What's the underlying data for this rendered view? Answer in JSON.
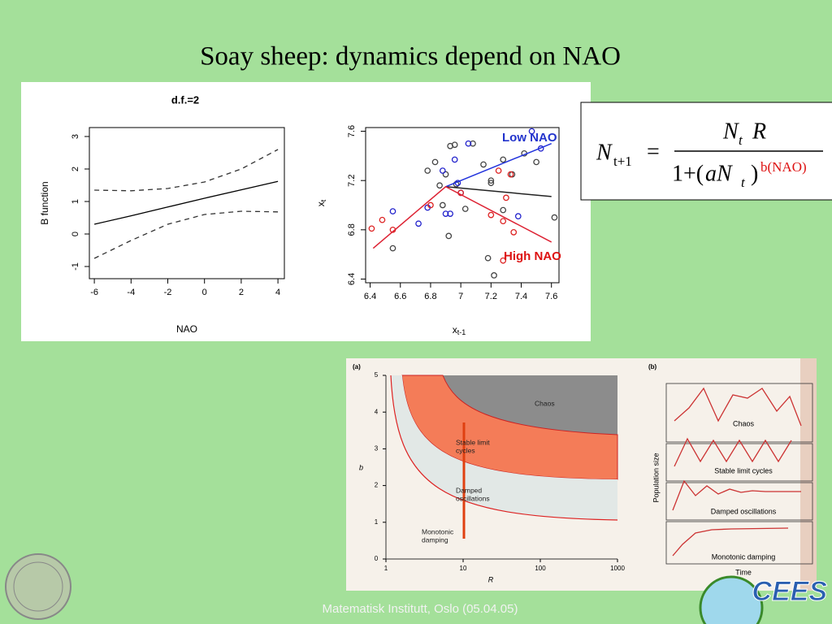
{
  "title": "Soay sheep: dynamics depend on NAO",
  "footer": "Matematisk Institutt, Oslo (05.04.05)",
  "logo": "CEES",
  "equation": {
    "lhs": "N",
    "lhs_sub": "t+1",
    "eq": "=",
    "num": "N",
    "num_sub": "t",
    "num_r": "R",
    "den_a": "1+(",
    "den_b": "aN",
    "den_sub": "t",
    "den_c": ")",
    "den_exp": "b(NAO)"
  },
  "chart_data": [
    {
      "type": "line",
      "title": "d.f.=2",
      "xlabel": "NAO",
      "ylabel": "B function",
      "x": [
        -6,
        -4,
        -2,
        0,
        2,
        4
      ],
      "series": [
        {
          "color": "#000000",
          "style": "solid",
          "values": [
            0.3,
            0.56,
            0.83,
            1.1,
            1.36,
            1.62
          ]
        },
        {
          "color": "#333333",
          "style": "dashed",
          "values": [
            1.35,
            1.33,
            1.4,
            1.6,
            2.0,
            2.6
          ]
        },
        {
          "color": "#333333",
          "style": "dashed",
          "values": [
            -0.75,
            -0.2,
            0.3,
            0.6,
            0.7,
            0.68
          ]
        }
      ],
      "xlim": [
        -6.27,
        4.35
      ],
      "xticks": [
        -6,
        -4,
        -2,
        0,
        2,
        4
      ],
      "ylim": [
        -1.375,
        3.275
      ],
      "yticks": [
        -1,
        0,
        1,
        2,
        3
      ]
    },
    {
      "type": "scatter",
      "xlabel": "x",
      "xlabel_sub": "t-1",
      "ylabel": "x",
      "ylabel_sub": "t",
      "series": [
        {
          "color": "#444444",
          "x": [
            6.55,
            6.78,
            6.83,
            6.86,
            6.88,
            6.93,
            6.9,
            6.92,
            6.96,
            7.03,
            7.08,
            7.15,
            7.2,
            7.2,
            7.28,
            7.18,
            7.22,
            7.28,
            7.34,
            7.42,
            7.5,
            7.62,
            6.97
          ],
          "values": [
            6.65,
            7.28,
            7.35,
            7.16,
            7.0,
            7.48,
            7.25,
            6.75,
            7.49,
            6.97,
            7.5,
            7.33,
            7.18,
            7.2,
            7.37,
            6.57,
            6.43,
            6.96,
            7.25,
            7.42,
            7.35,
            6.9,
            7.17
          ]
        },
        {
          "color": "#2222cc",
          "x": [
            6.55,
            6.72,
            6.78,
            6.88,
            6.9,
            6.93,
            6.96,
            6.98,
            7.05,
            7.0,
            7.38,
            7.47,
            7.53
          ],
          "values": [
            6.95,
            6.85,
            6.98,
            7.28,
            6.93,
            6.93,
            7.37,
            7.18,
            7.5,
            7.1,
            6.91,
            7.6,
            7.46
          ]
        },
        {
          "color": "#dd2222",
          "x": [
            6.41,
            6.48,
            6.55,
            6.8,
            7.0,
            7.2,
            7.25,
            7.28,
            7.3,
            7.33,
            7.35,
            7.28
          ],
          "values": [
            6.81,
            6.88,
            6.8,
            7.0,
            7.1,
            6.92,
            7.28,
            6.87,
            7.06,
            7.25,
            6.78,
            6.55
          ]
        }
      ],
      "lines": [
        {
          "color": "#222222",
          "x": [
            6.9,
            7.6
          ],
          "values": [
            7.15,
            7.07
          ]
        },
        {
          "color": "#2233dd",
          "x": [
            6.9,
            7.6
          ],
          "values": [
            7.15,
            7.5
          ]
        },
        {
          "color": "#dd2233",
          "x": [
            6.42,
            6.9,
            7.6
          ],
          "values": [
            6.65,
            7.15,
            6.7
          ]
        }
      ],
      "annotations": [
        "Low NAO",
        "High NAO"
      ],
      "xlim": [
        6.37,
        7.65
      ],
      "xticks": [
        6.4,
        6.6,
        6.8,
        7.0,
        7.2,
        7.4,
        7.6
      ],
      "ylim": [
        6.37,
        7.63
      ],
      "yticks": [
        6.4,
        6.8,
        7.2,
        7.6
      ]
    },
    {
      "type": "regions",
      "panel": "(a)",
      "xlabel": "R",
      "ylabel": "b",
      "log_x": true,
      "xlim": [
        1,
        1000
      ],
      "xticks": [
        1,
        10,
        100,
        1000
      ],
      "ylim": [
        0,
        5
      ],
      "yticks": [
        0,
        1,
        2,
        3,
        4,
        5
      ],
      "regions": [
        [
          "Chaos"
        ],
        [
          "Stable limit",
          "cycles"
        ],
        [
          "Damped",
          "oscillations"
        ],
        [
          "Monotonic",
          "damping"
        ]
      ]
    },
    {
      "type": "panels",
      "panel": "(b)",
      "xlabel": "Time",
      "ylabel": "Population size",
      "panels": [
        "Chaos",
        "Stable limit cycles",
        "Damped oscillations",
        "Monotonic damping"
      ]
    }
  ]
}
